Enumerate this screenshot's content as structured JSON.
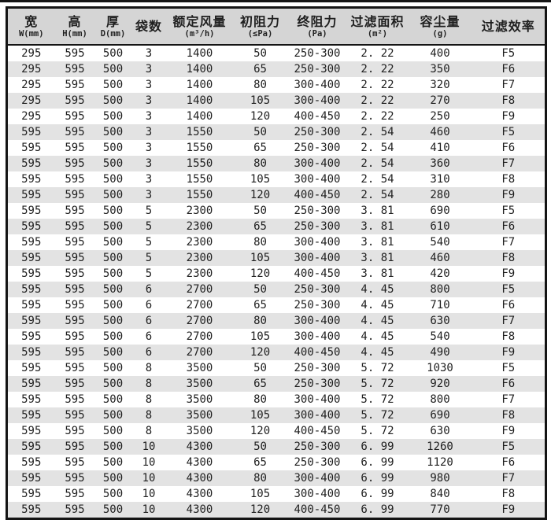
{
  "theme": {
    "page_bg": "#ffffff",
    "border_color": "#141414",
    "header_bg": "#d5d5d5",
    "row_bg": "#ffffff",
    "row_alt_bg": "#e3e3e3",
    "text_color": "#1f1f1f"
  },
  "table": {
    "column_keys": [
      "width",
      "height",
      "depth",
      "bag_count",
      "rated_airflow",
      "initial_resistance",
      "final_resistance",
      "filter_area",
      "dust_capacity",
      "efficiency"
    ],
    "columns": [
      {
        "title": "宽",
        "sub": "W(mm)"
      },
      {
        "title": "高",
        "sub": "H(mm)"
      },
      {
        "title": "厚",
        "sub": "D(mm)"
      },
      {
        "title": "袋数",
        "sub": ""
      },
      {
        "title": "额定风量",
        "sub": "(m³/h)"
      },
      {
        "title": "初阻力",
        "sub": "(≤Pa)"
      },
      {
        "title": "终阻力",
        "sub": "(Pa)"
      },
      {
        "title": "过滤面积",
        "sub": "(m²)"
      },
      {
        "title": "容尘量",
        "sub": "(g)"
      },
      {
        "title": "过滤效率",
        "sub": ""
      }
    ],
    "rows": [
      [
        "295",
        "595",
        "500",
        "3",
        "1400",
        "50",
        "250-300",
        "2. 22",
        "400",
        "F5"
      ],
      [
        "295",
        "595",
        "500",
        "3",
        "1400",
        "65",
        "250-300",
        "2. 22",
        "350",
        "F6"
      ],
      [
        "295",
        "595",
        "500",
        "3",
        "1400",
        "80",
        "300-400",
        "2. 22",
        "320",
        "F7"
      ],
      [
        "295",
        "595",
        "500",
        "3",
        "1400",
        "105",
        "300-400",
        "2. 22",
        "270",
        "F8"
      ],
      [
        "295",
        "595",
        "500",
        "3",
        "1400",
        "120",
        "400-450",
        "2. 22",
        "250",
        "F9"
      ],
      [
        "595",
        "595",
        "500",
        "3",
        "1550",
        "50",
        "250-300",
        "2. 54",
        "460",
        "F5"
      ],
      [
        "595",
        "595",
        "500",
        "3",
        "1550",
        "65",
        "250-300",
        "2. 54",
        "410",
        "F6"
      ],
      [
        "595",
        "595",
        "500",
        "3",
        "1550",
        "80",
        "300-400",
        "2. 54",
        "360",
        "F7"
      ],
      [
        "595",
        "595",
        "500",
        "3",
        "1550",
        "105",
        "300-400",
        "2. 54",
        "310",
        "F8"
      ],
      [
        "595",
        "595",
        "500",
        "3",
        "1550",
        "120",
        "400-450",
        "2. 54",
        "280",
        "F9"
      ],
      [
        "595",
        "595",
        "500",
        "5",
        "2300",
        "50",
        "250-300",
        "3. 81",
        "690",
        "F5"
      ],
      [
        "595",
        "595",
        "500",
        "5",
        "2300",
        "65",
        "250-300",
        "3. 81",
        "610",
        "F6"
      ],
      [
        "595",
        "595",
        "500",
        "5",
        "2300",
        "80",
        "300-400",
        "3. 81",
        "540",
        "F7"
      ],
      [
        "595",
        "595",
        "500",
        "5",
        "2300",
        "105",
        "300-400",
        "3. 81",
        "460",
        "F8"
      ],
      [
        "595",
        "595",
        "500",
        "5",
        "2300",
        "120",
        "400-450",
        "3. 81",
        "420",
        "F9"
      ],
      [
        "595",
        "595",
        "500",
        "6",
        "2700",
        "50",
        "250-300",
        "4. 45",
        "800",
        "F5"
      ],
      [
        "595",
        "595",
        "500",
        "6",
        "2700",
        "65",
        "250-300",
        "4. 45",
        "710",
        "F6"
      ],
      [
        "595",
        "595",
        "500",
        "6",
        "2700",
        "80",
        "300-400",
        "4. 45",
        "630",
        "F7"
      ],
      [
        "595",
        "595",
        "500",
        "6",
        "2700",
        "105",
        "300-400",
        "4. 45",
        "540",
        "F8"
      ],
      [
        "595",
        "595",
        "500",
        "6",
        "2700",
        "120",
        "400-450",
        "4. 45",
        "490",
        "F9"
      ],
      [
        "595",
        "595",
        "500",
        "8",
        "3500",
        "50",
        "250-300",
        "5. 72",
        "1030",
        "F5"
      ],
      [
        "595",
        "595",
        "500",
        "8",
        "3500",
        "65",
        "250-300",
        "5. 72",
        "920",
        "F6"
      ],
      [
        "595",
        "595",
        "500",
        "8",
        "3500",
        "80",
        "300-400",
        "5. 72",
        "800",
        "F7"
      ],
      [
        "595",
        "595",
        "500",
        "8",
        "3500",
        "105",
        "300-400",
        "5. 72",
        "690",
        "F8"
      ],
      [
        "595",
        "595",
        "500",
        "8",
        "3500",
        "120",
        "400-450",
        "5. 72",
        "630",
        "F9"
      ],
      [
        "595",
        "595",
        "500",
        "10",
        "4300",
        "50",
        "250-300",
        "6. 99",
        "1260",
        "F5"
      ],
      [
        "595",
        "595",
        "500",
        "10",
        "4300",
        "65",
        "250-300",
        "6. 99",
        "1120",
        "F6"
      ],
      [
        "595",
        "595",
        "500",
        "10",
        "4300",
        "80",
        "300-400",
        "6. 99",
        "980",
        "F7"
      ],
      [
        "595",
        "595",
        "500",
        "10",
        "4300",
        "105",
        "300-400",
        "6. 99",
        "840",
        "F8"
      ],
      [
        "595",
        "595",
        "500",
        "10",
        "4300",
        "120",
        "400-450",
        "6. 99",
        "770",
        "F9"
      ]
    ]
  }
}
